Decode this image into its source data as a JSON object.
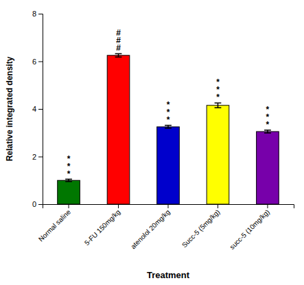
{
  "chart_data": {
    "type": "bar",
    "categories": [
      "Normal saline",
      "5-FU 150mg/kg",
      "atenolol 20mg/kg",
      "Succ-5 (5mg/kg)",
      "succ-5 (10mg/kg)"
    ],
    "values": [
      1.0,
      6.25,
      3.25,
      4.15,
      3.05
    ],
    "errors": [
      0.05,
      0.07,
      0.06,
      0.1,
      0.06
    ],
    "colors": [
      "#007700",
      "#ff0000",
      "#0000cc",
      "#ffff00",
      "#7700aa"
    ],
    "annotations": [
      "*\n*\n*",
      "#\n#\n#",
      "*\n*\n*",
      "*\n*\n*",
      "*\n*\n*"
    ],
    "ylabel": "Relative integrated density",
    "xlabel": "Treatment",
    "ylim": [
      0,
      8
    ],
    "yticks": [
      0,
      2,
      4,
      6,
      8
    ],
    "grid": false
  }
}
